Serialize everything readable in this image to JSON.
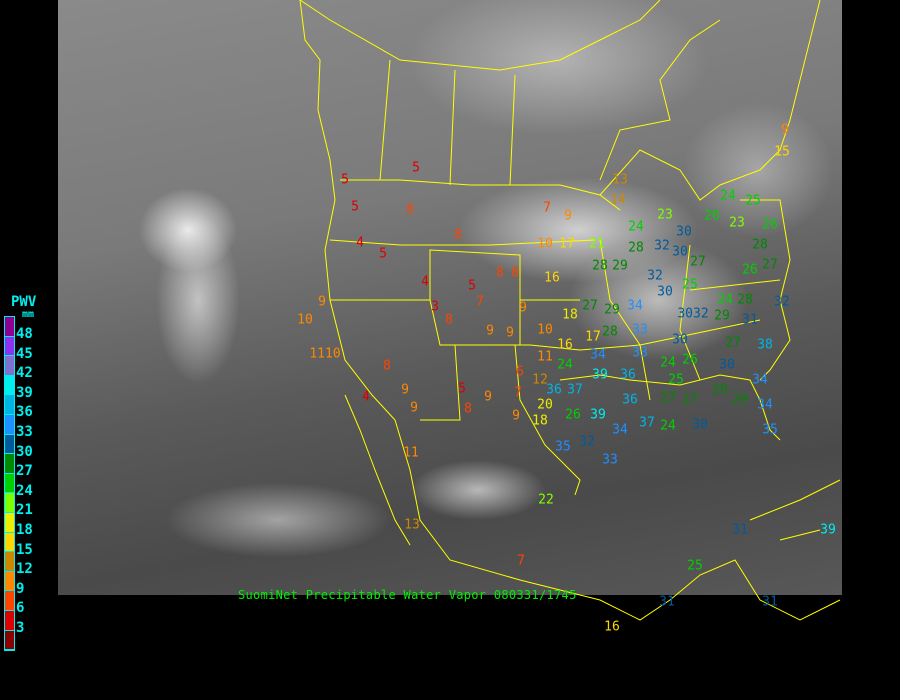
{
  "caption": "SuomiNet Precipitable Water Vapor 080331/1745",
  "legend": {
    "title": "PWV",
    "unit": "mm",
    "labels": [
      "48",
      "45",
      "42",
      "39",
      "36",
      "33",
      "30",
      "27",
      "24",
      "21",
      "18",
      "15",
      "12",
      "9",
      "6",
      "3"
    ],
    "colors": [
      "#900090",
      "#9030f0",
      "#8070d0",
      "#00eeee",
      "#00b4e6",
      "#1e90ff",
      "#005a9c",
      "#008800",
      "#00d000",
      "#80ff00",
      "#eeee00",
      "#ffd700",
      "#cc8800",
      "#ff8800",
      "#ff4400",
      "#dd0000",
      "#8b0000"
    ]
  },
  "colors": {
    "boundaries": "#ffff00",
    "caption": "#00ee00",
    "legend_text": "#00eeee"
  },
  "station_values": [
    "5",
    "5",
    "5",
    "8",
    "4",
    "5",
    "8",
    "7",
    "9",
    "10",
    "17",
    "21",
    "8",
    "8",
    "16",
    "4",
    "5",
    "7",
    "3",
    "8",
    "9",
    "9",
    "9",
    "10",
    "1110",
    "8",
    "9",
    "9",
    "4",
    "5",
    "9",
    "8",
    "7",
    "9",
    "20",
    "18",
    "26",
    "39",
    "35",
    "32",
    "11",
    "22",
    "13",
    "7",
    "25",
    "31",
    "39",
    "31",
    "16",
    "31",
    "13",
    "14",
    "24",
    "23",
    "30",
    "28",
    "32",
    "30",
    "27",
    "28",
    "29",
    "32",
    "25",
    "3032",
    "30",
    "29",
    "34",
    "27",
    "33",
    "30",
    "24",
    "23",
    "26",
    "25",
    "28",
    "26",
    "28",
    "24",
    "31",
    "29",
    "27",
    "38",
    "9",
    "15",
    "26",
    "27",
    "32",
    "9",
    "18",
    "10",
    "16",
    "17",
    "11",
    "6",
    "12",
    "24",
    "34",
    "39",
    "37",
    "28",
    "36",
    "33",
    "36",
    "34",
    "33",
    "37",
    "25",
    "26",
    "27",
    "27",
    "24",
    "30",
    "29",
    "34",
    "30",
    "34",
    "35",
    "29",
    "24",
    "36"
  ]
}
